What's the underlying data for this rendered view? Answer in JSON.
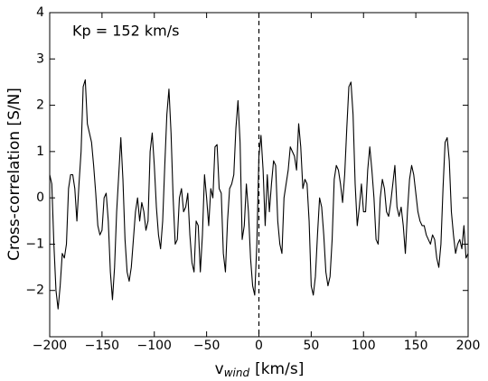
{
  "chart_data": {
    "type": "line",
    "annotation": "Kp = 152 km/s",
    "ylabel": "Cross-correlation [S/N]",
    "xlabel": {
      "main": "v",
      "sub": "wind",
      "rest": "[km/s]"
    },
    "xlim": [
      -200,
      200
    ],
    "ylim": [
      -3,
      4
    ],
    "xticks": [
      {
        "value": -200,
        "label": "−200"
      },
      {
        "value": -150,
        "label": "−150"
      },
      {
        "value": -100,
        "label": "−100"
      },
      {
        "value": -50,
        "label": "−50"
      },
      0,
      50,
      100,
      150,
      200
    ],
    "yticks": [
      {
        "value": -2,
        "label": "−2"
      },
      {
        "value": -1,
        "label": "−1"
      },
      0,
      1,
      2,
      3,
      4
    ],
    "vlines": [
      0
    ],
    "grid": false,
    "x": [
      -200,
      -198,
      -196,
      -194,
      -192,
      -190,
      -188,
      -186,
      -184,
      -182,
      -180,
      -178,
      -176,
      -174,
      -172,
      -170,
      -168,
      -166,
      -164,
      -162,
      -160,
      -158,
      -156,
      -154,
      -152,
      -150,
      -148,
      -146,
      -144,
      -142,
      -140,
      -138,
      -136,
      -134,
      -132,
      -130,
      -128,
      -126,
      -124,
      -122,
      -120,
      -118,
      -116,
      -114,
      -112,
      -110,
      -108,
      -106,
      -104,
      -102,
      -100,
      -98,
      -96,
      -94,
      -92,
      -90,
      -88,
      -86,
      -84,
      -82,
      -80,
      -78,
      -76,
      -74,
      -72,
      -70,
      -68,
      -66,
      -64,
      -62,
      -60,
      -58,
      -56,
      -54,
      -52,
      -50,
      -48,
      -46,
      -44,
      -42,
      -40,
      -38,
      -36,
      -34,
      -32,
      -30,
      -28,
      -26,
      -24,
      -22,
      -20,
      -18,
      -16,
      -14,
      -12,
      -10,
      -8,
      -6,
      -4,
      -2,
      0,
      2,
      4,
      6,
      8,
      10,
      12,
      14,
      16,
      18,
      20,
      22,
      24,
      26,
      28,
      30,
      32,
      34,
      36,
      38,
      40,
      42,
      44,
      46,
      48,
      50,
      52,
      54,
      56,
      58,
      60,
      62,
      64,
      66,
      68,
      70,
      72,
      74,
      76,
      78,
      80,
      82,
      84,
      86,
      88,
      90,
      92,
      94,
      96,
      98,
      100,
      102,
      104,
      106,
      108,
      110,
      112,
      114,
      116,
      118,
      120,
      122,
      124,
      126,
      128,
      130,
      132,
      134,
      136,
      138,
      140,
      142,
      144,
      146,
      148,
      150,
      152,
      154,
      156,
      158,
      160,
      162,
      164,
      166,
      168,
      170,
      172,
      174,
      176,
      178,
      180,
      182,
      184,
      186,
      188,
      190,
      192,
      194,
      196,
      198,
      200
    ],
    "series": [
      {
        "color": "#000000",
        "values": [
          0.5,
          0.3,
          -1.0,
          -2.0,
          -2.4,
          -1.9,
          -1.2,
          -1.3,
          -1.0,
          0.2,
          0.5,
          0.5,
          0.2,
          -0.5,
          0.3,
          1.0,
          2.4,
          2.55,
          1.6,
          1.4,
          1.2,
          0.7,
          0.1,
          -0.6,
          -0.8,
          -0.7,
          0.0,
          0.1,
          -0.5,
          -1.6,
          -2.2,
          -1.5,
          -0.3,
          0.5,
          1.3,
          0.4,
          -0.9,
          -1.6,
          -1.8,
          -1.5,
          -0.9,
          -0.3,
          0.0,
          -0.5,
          -0.1,
          -0.3,
          -0.7,
          -0.5,
          1.0,
          1.4,
          0.7,
          -0.2,
          -0.8,
          -1.1,
          -0.5,
          0.7,
          1.8,
          2.35,
          1.4,
          0.0,
          -1.0,
          -0.9,
          0.0,
          0.2,
          -0.3,
          -0.2,
          0.1,
          -0.8,
          -1.4,
          -1.6,
          -0.5,
          -0.6,
          -1.6,
          -0.8,
          0.5,
          0.0,
          -0.6,
          0.2,
          0.0,
          1.1,
          1.15,
          0.2,
          0.1,
          -1.2,
          -1.6,
          -0.5,
          0.2,
          0.3,
          0.5,
          1.5,
          2.1,
          1.2,
          -0.9,
          -0.6,
          0.3,
          -0.3,
          -1.3,
          -1.9,
          -2.1,
          -1.0,
          0.9,
          1.35,
          0.6,
          -0.6,
          0.5,
          -0.3,
          0.3,
          0.8,
          0.7,
          -0.5,
          -1.0,
          -1.2,
          0.0,
          0.3,
          0.6,
          1.1,
          1.0,
          0.9,
          0.6,
          1.6,
          1.1,
          0.2,
          0.4,
          0.3,
          -0.5,
          -1.9,
          -2.1,
          -1.7,
          -0.8,
          0.0,
          -0.2,
          -0.8,
          -1.6,
          -1.9,
          -1.7,
          -0.9,
          0.4,
          0.7,
          0.6,
          0.3,
          -0.1,
          0.5,
          1.5,
          2.4,
          2.5,
          1.8,
          0.3,
          -0.6,
          -0.2,
          0.3,
          -0.3,
          -0.3,
          0.6,
          1.1,
          0.6,
          0.0,
          -0.9,
          -1.0,
          0.0,
          0.4,
          0.2,
          -0.3,
          -0.4,
          -0.1,
          0.3,
          0.7,
          -0.2,
          -0.4,
          -0.2,
          -0.6,
          -1.2,
          -0.3,
          0.4,
          0.7,
          0.5,
          0.1,
          -0.3,
          -0.5,
          -0.6,
          -0.6,
          -0.8,
          -0.9,
          -1.0,
          -0.8,
          -0.9,
          -1.3,
          -1.5,
          -1.0,
          0.2,
          1.2,
          1.3,
          0.8,
          -0.3,
          -0.8,
          -1.2,
          -1.0,
          -0.9,
          -1.1,
          -0.6,
          -1.3,
          -1.2
        ]
      }
    ]
  }
}
